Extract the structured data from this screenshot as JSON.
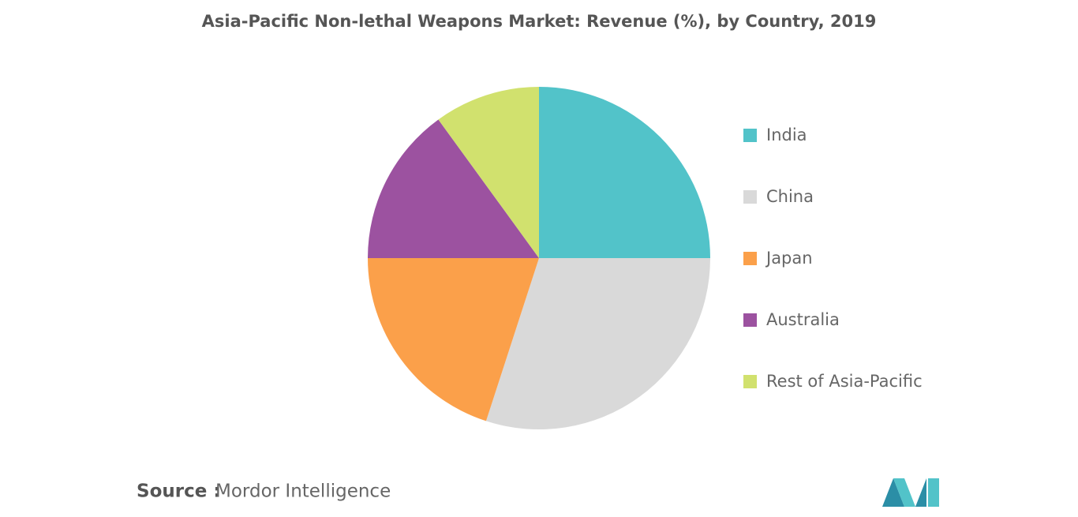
{
  "chart_data": {
    "type": "pie",
    "title": "Asia-Pacific Non-lethal Weapons Market: Revenue (%), by Country, 2019",
    "categories": [
      "India",
      "China",
      "Japan",
      "Australia",
      "Rest of Asia-Pacific"
    ],
    "values": [
      25,
      30,
      20,
      15,
      10
    ],
    "colors": [
      "#52c3c9",
      "#d9d9d9",
      "#fba04a",
      "#9c52a0",
      "#d1e16e"
    ],
    "legend": "right",
    "source_label": "Source :",
    "source": "Mordor Intelligence"
  }
}
